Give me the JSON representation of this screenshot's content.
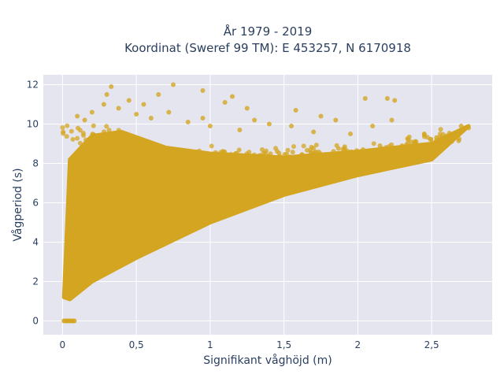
{
  "chart_data": {
    "type": "scatter",
    "title_lines": [
      "År 1979 - 2019",
      "Koordinat (Sweref 99 TM): E 453257, N 6170918"
    ],
    "xlabel": "Signifikant våghöjd (m)",
    "ylabel": "Vågperiod (s)",
    "xlim": [
      -0.13,
      2.91
    ],
    "ylim": [
      -0.7,
      12.5
    ],
    "x_ticks": [
      0,
      0.5,
      1,
      1.5,
      2,
      2.5
    ],
    "x_tick_labels": [
      "0",
      "0,5",
      "1",
      "1,5",
      "2",
      "2,5"
    ],
    "y_ticks": [
      0,
      2,
      4,
      6,
      8,
      10,
      12
    ],
    "y_tick_labels": [
      "0",
      "2",
      "4",
      "6",
      "8",
      "10",
      "12"
    ],
    "grid": true,
    "marker_color": "#D4A520",
    "plot_bg": "#E5E5EF",
    "point_cloud": {
      "description_points": [
        [
          0.01,
          1.2
        ],
        [
          0.05,
          8.2
        ],
        [
          0.2,
          9.4
        ],
        [
          0.4,
          9.6
        ],
        [
          0.7,
          8.8
        ],
        [
          1.0,
          8.5
        ],
        [
          1.5,
          8.3
        ],
        [
          2.0,
          8.6
        ],
        [
          2.5,
          9.0
        ],
        [
          2.75,
          9.9
        ],
        [
          2.5,
          8.2
        ],
        [
          2.0,
          7.4
        ],
        [
          1.5,
          6.4
        ],
        [
          1.0,
          5.0
        ],
        [
          0.5,
          3.2
        ],
        [
          0.2,
          2.0
        ],
        [
          0.05,
          1.1
        ]
      ],
      "outliers": [
        [
          0.33,
          11.9
        ],
        [
          0.3,
          11.5
        ],
        [
          0.75,
          12.0
        ],
        [
          0.45,
          11.2
        ],
        [
          0.55,
          11.0
        ],
        [
          0.65,
          11.5
        ],
        [
          0.95,
          11.7
        ],
        [
          1.15,
          11.4
        ],
        [
          1.1,
          11.1
        ],
        [
          1.25,
          10.8
        ],
        [
          1.3,
          10.2
        ],
        [
          1.4,
          10.0
        ],
        [
          1.55,
          9.9
        ],
        [
          1.75,
          10.4
        ],
        [
          1.85,
          10.2
        ],
        [
          2.05,
          11.3
        ],
        [
          2.2,
          11.3
        ],
        [
          2.25,
          11.2
        ],
        [
          2.23,
          10.2
        ],
        [
          2.1,
          9.9
        ],
        [
          2.45,
          9.5
        ],
        [
          2.7,
          9.9
        ],
        [
          2.75,
          9.8
        ],
        [
          0.95,
          10.3
        ],
        [
          0.1,
          10.4
        ],
        [
          0.2,
          10.6
        ],
        [
          0.15,
          10.2
        ],
        [
          0.6,
          10.3
        ],
        [
          0.85,
          10.1
        ],
        [
          1.0,
          9.9
        ],
        [
          1.7,
          9.6
        ],
        [
          1.95,
          9.5
        ],
        [
          2.3,
          8.9
        ],
        [
          2.15,
          8.9
        ],
        [
          0.38,
          10.8
        ],
        [
          0.5,
          10.5
        ],
        [
          0.72,
          10.6
        ],
        [
          1.58,
          10.7
        ],
        [
          1.2,
          9.7
        ],
        [
          0.28,
          11.0
        ]
      ],
      "zero_points_x": [
        0.01,
        0.02,
        0.03,
        0.04,
        0.05,
        0.06,
        0.07,
        0.08
      ]
    }
  }
}
